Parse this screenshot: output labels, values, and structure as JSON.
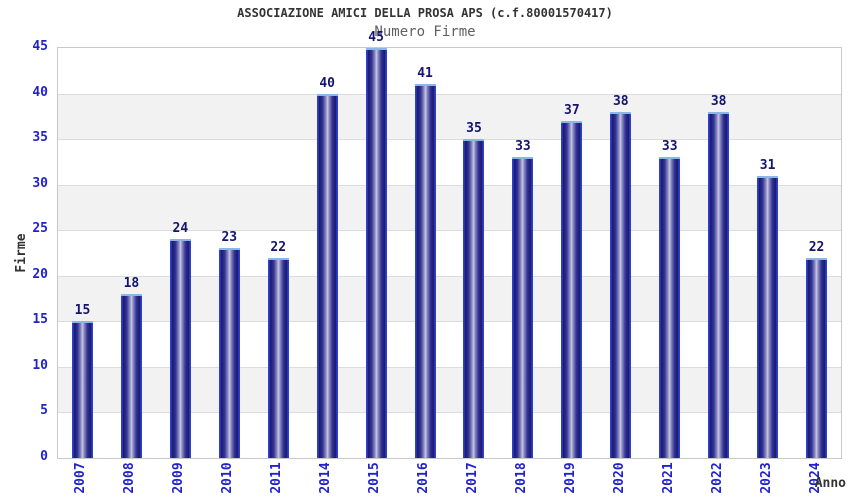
{
  "window": {
    "background": "#ffffff"
  },
  "chart_data": {
    "type": "bar",
    "title": "ASSOCIAZIONE AMICI DELLA PROSA APS (c.f.80001570417)",
    "subtitle": "Numero Firme",
    "xlabel": "Anno",
    "ylabel": "Firme",
    "categories": [
      "2007",
      "2008",
      "2009",
      "2010",
      "2011",
      "2014",
      "2015",
      "2016",
      "2017",
      "2018",
      "2019",
      "2020",
      "2021",
      "2022",
      "2023",
      "2024"
    ],
    "values": [
      15,
      18,
      24,
      23,
      22,
      40,
      45,
      41,
      35,
      33,
      37,
      38,
      33,
      38,
      31,
      22
    ],
    "ylim": [
      0,
      45
    ],
    "yticks": [
      0,
      5,
      10,
      15,
      20,
      25,
      30,
      35,
      40,
      45
    ],
    "grid": "horizontal-bands-alternating",
    "legend": "none",
    "bar_value_labels": true,
    "x_tick_rotation_deg": -90
  },
  "colors": {
    "background": "#ffffff",
    "title_text": "#333333",
    "subtitle_text": "#606060",
    "axis_tick_text": "#2222cc",
    "value_label_text": "#14146e",
    "band_white": "#ffffff",
    "band_gray": "#f2f2f2",
    "gridline": "#dcdcdc",
    "plot_border": "#c9c9c9",
    "bar_edge": "#2e3fd4",
    "bar_dark": "#1a1a66",
    "bar_mid": "#33339a",
    "bar_light": "#c9c9e2",
    "bar_cap": "#8ab6e8"
  }
}
